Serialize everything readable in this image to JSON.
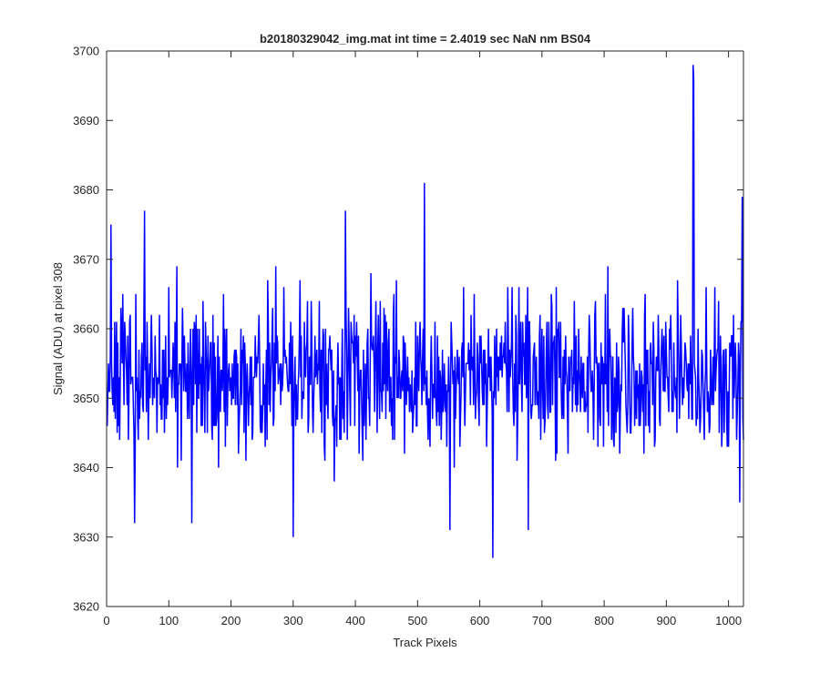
{
  "chart_data": {
    "type": "line",
    "title": "b20180329042_img.mat int time = 2.4019 sec  NaN nm BS04",
    "xlabel": "Track Pixels",
    "ylabel": "Signal (ADU) at pixel 308",
    "xlim": [
      0,
      1024
    ],
    "ylim": [
      3620,
      3700
    ],
    "xticks": [
      0,
      100,
      200,
      300,
      400,
      500,
      600,
      700,
      800,
      900,
      1000
    ],
    "yticks": [
      3620,
      3630,
      3640,
      3650,
      3660,
      3670,
      3680,
      3690,
      3700
    ],
    "grid": false,
    "box": true,
    "series": [
      {
        "color": "#0000ff",
        "n_points": 1024,
        "x_start": 1,
        "x_end": 1024,
        "baseline_mean": 3653,
        "typical_range": [
          3640,
          3667
        ],
        "notable_points": [
          {
            "x": 7,
            "y": 3675
          },
          {
            "x": 45,
            "y": 3632
          },
          {
            "x": 61,
            "y": 3677
          },
          {
            "x": 137,
            "y": 3632
          },
          {
            "x": 300,
            "y": 3630
          },
          {
            "x": 384,
            "y": 3677
          },
          {
            "x": 511,
            "y": 3681
          },
          {
            "x": 552,
            "y": 3631
          },
          {
            "x": 621,
            "y": 3627
          },
          {
            "x": 678,
            "y": 3631
          },
          {
            "x": 943,
            "y": 3698
          },
          {
            "x": 944,
            "y": 3696
          },
          {
            "x": 1018,
            "y": 3635
          },
          {
            "x": 1022,
            "y": 3679
          }
        ]
      }
    ]
  }
}
